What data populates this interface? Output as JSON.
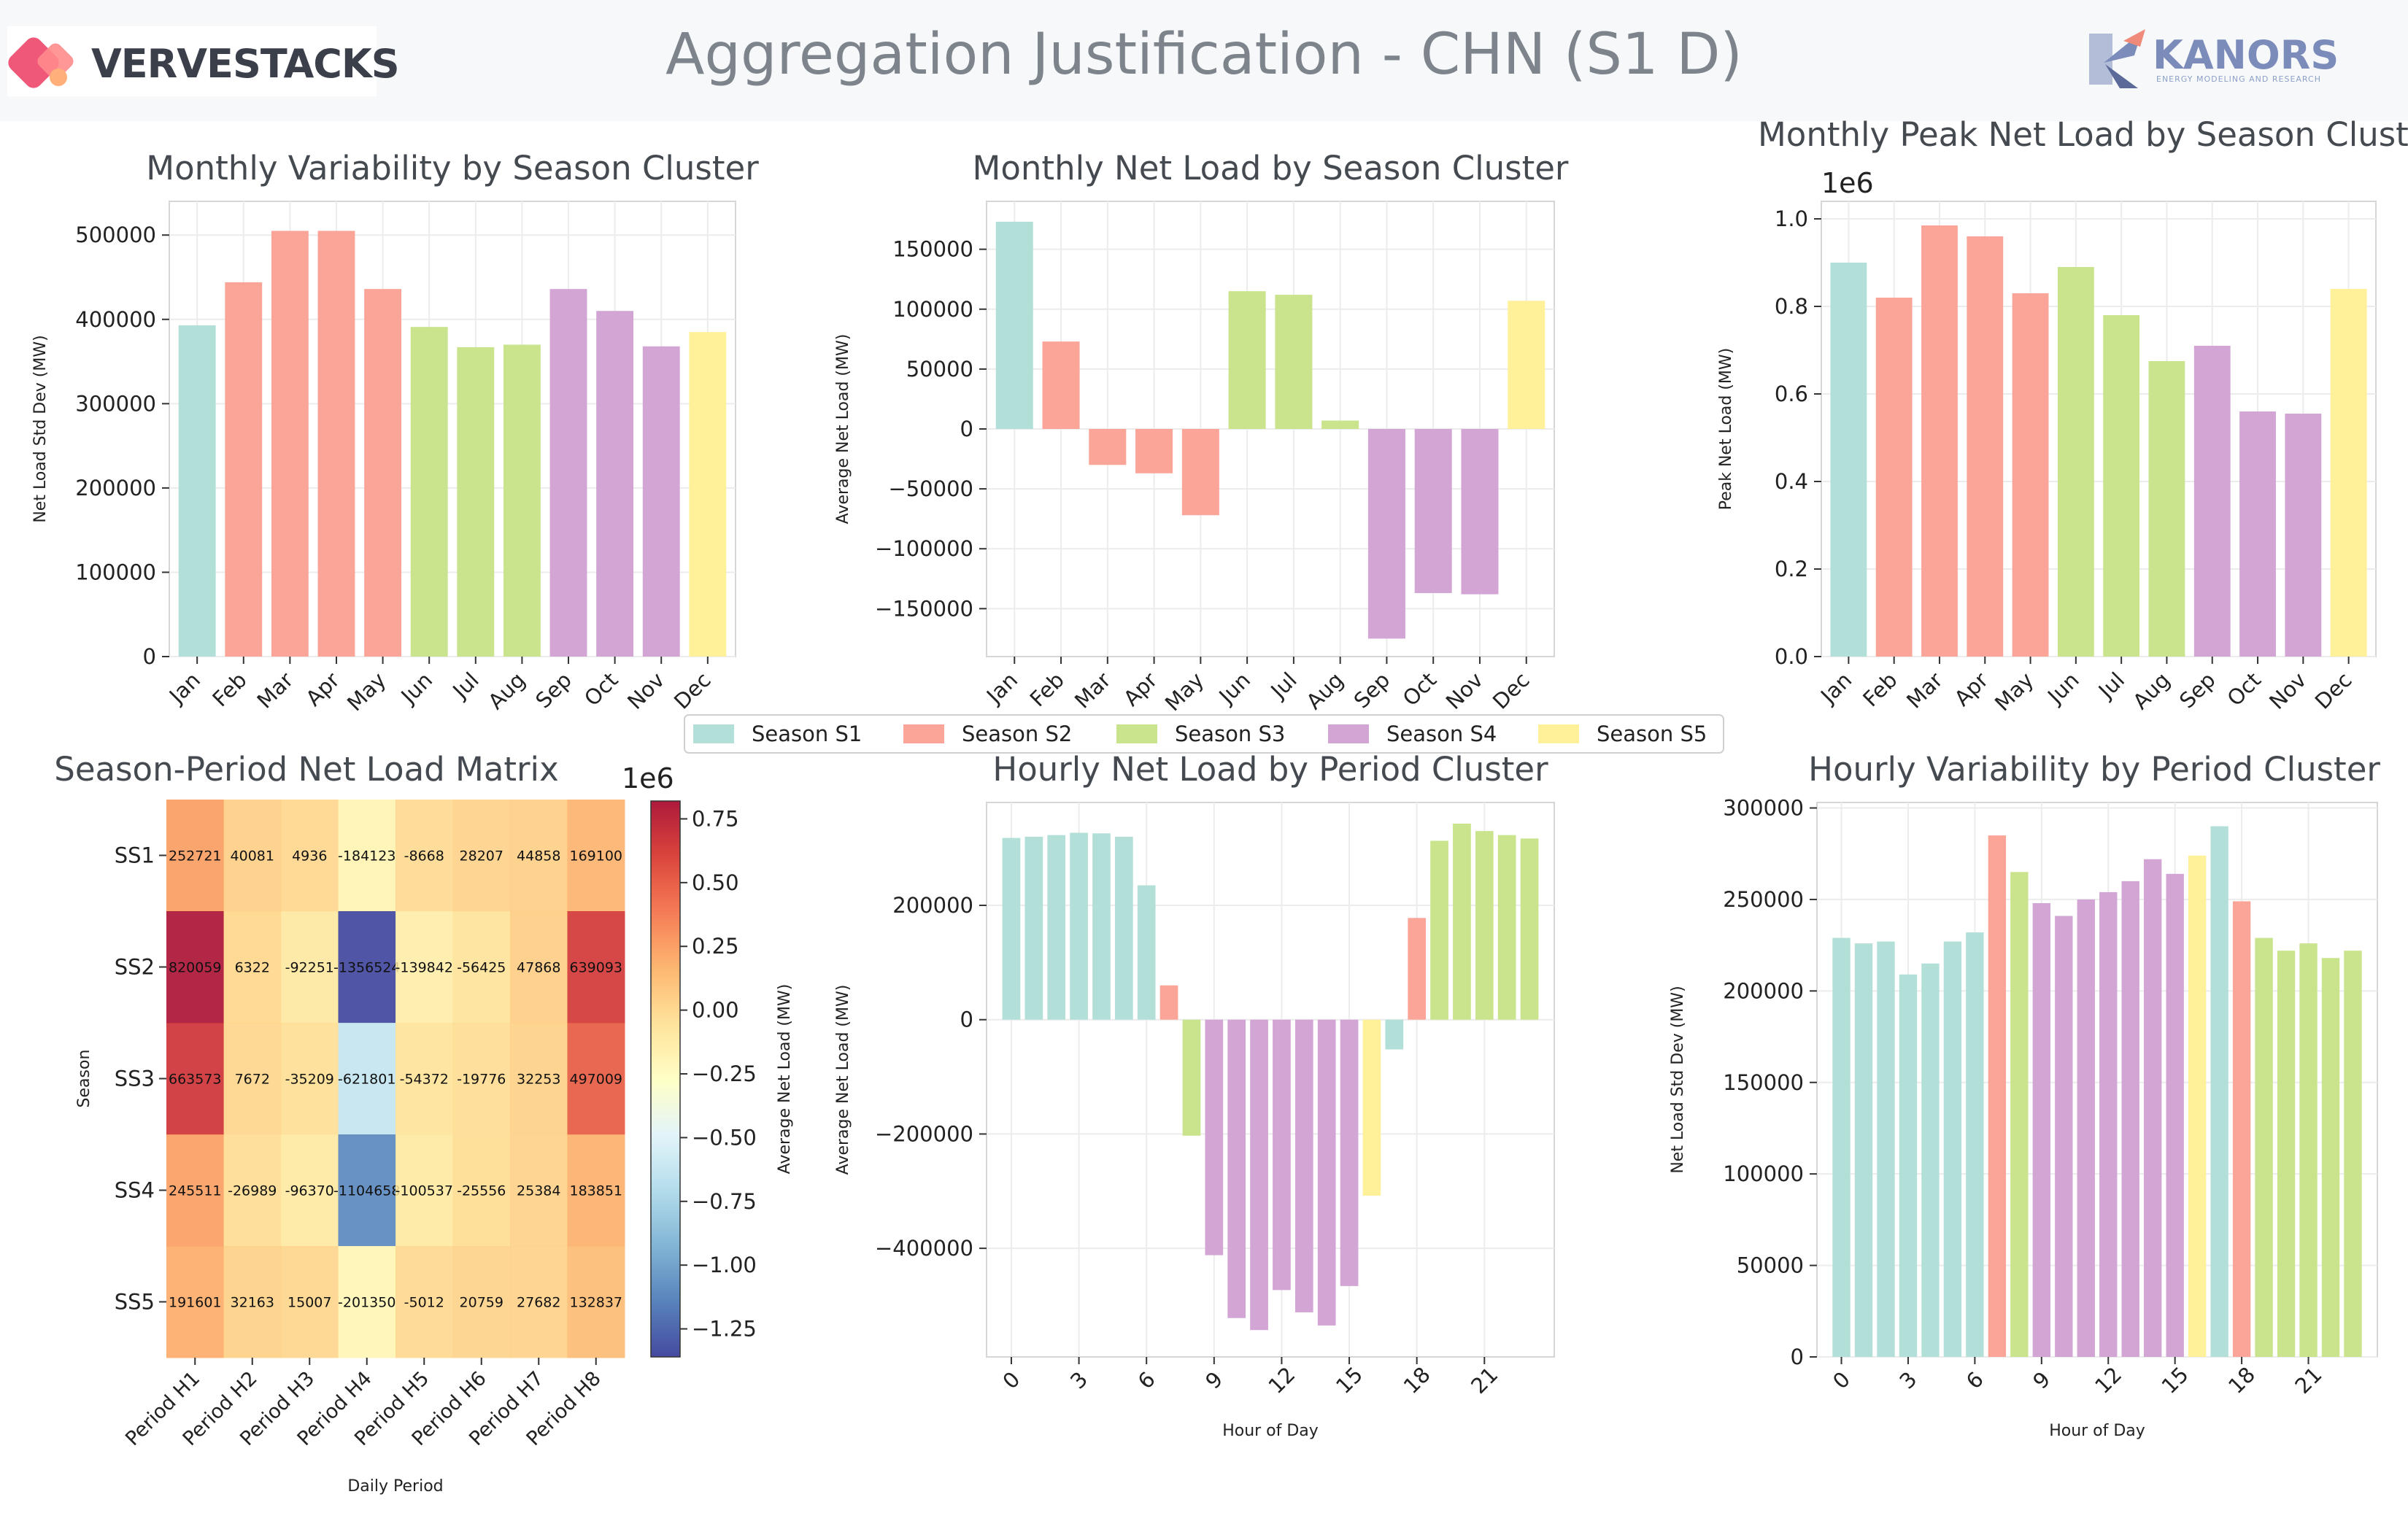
{
  "header": {
    "title": "Aggregation Justification - CHN (S1 D)",
    "left_logo": "VERVESTACKS",
    "right_logo": "KANORS",
    "right_logo_sub": "ENERGY MODELING AND RESEARCH"
  },
  "colors": {
    "S1": "#b2e0d8",
    "S2": "#fba598",
    "S3": "#c9e48c",
    "S4": "#d2a5d5",
    "S5": "#fff09a"
  },
  "legend": [
    {
      "label": "Season S1",
      "key": "S1"
    },
    {
      "label": "Season S2",
      "key": "S2"
    },
    {
      "label": "Season S3",
      "key": "S3"
    },
    {
      "label": "Season S4",
      "key": "S4"
    },
    {
      "label": "Season S5",
      "key": "S5"
    }
  ],
  "chart_data": [
    {
      "id": "monthly_variability",
      "type": "bar",
      "title": "Monthly Variability by Season Cluster",
      "ylabel": "Net Load Std Dev (MW)",
      "xlabel": "",
      "categories": [
        "Jan",
        "Feb",
        "Mar",
        "Apr",
        "May",
        "Jun",
        "Jul",
        "Aug",
        "Sep",
        "Oct",
        "Nov",
        "Dec"
      ],
      "values": [
        393000,
        444000,
        505000,
        505000,
        436000,
        391000,
        367000,
        370000,
        436000,
        410000,
        368000,
        385000
      ],
      "clusters": [
        "S1",
        "S2",
        "S2",
        "S2",
        "S2",
        "S3",
        "S3",
        "S3",
        "S4",
        "S4",
        "S4",
        "S5"
      ],
      "ylim": [
        0,
        540000
      ],
      "yticks": [
        0,
        100000,
        200000,
        300000,
        400000,
        500000
      ],
      "ytick_labels": [
        "0",
        "100000",
        "200000",
        "300000",
        "400000",
        "500000"
      ],
      "grid": true
    },
    {
      "id": "monthly_net_load",
      "type": "bar",
      "title": "Monthly Net Load by Season Cluster",
      "ylabel": "Average Net Load (MW)",
      "xlabel": "",
      "categories": [
        "Jan",
        "Feb",
        "Mar",
        "Apr",
        "May",
        "Jun",
        "Jul",
        "Aug",
        "Sep",
        "Oct",
        "Nov",
        "Dec"
      ],
      "values": [
        173000,
        73000,
        -30000,
        -37000,
        -72000,
        115000,
        112000,
        7000,
        -175000,
        -137000,
        -138000,
        107000
      ],
      "clusters": [
        "S1",
        "S2",
        "S2",
        "S2",
        "S2",
        "S3",
        "S3",
        "S3",
        "S4",
        "S4",
        "S4",
        "S5"
      ],
      "ylim": [
        -190000,
        190000
      ],
      "yticks": [
        -150000,
        -100000,
        -50000,
        0,
        50000,
        100000,
        150000
      ],
      "ytick_labels": [
        "−150000",
        "−100000",
        "−50000",
        "0",
        "50000",
        "100000",
        "150000"
      ],
      "grid": true
    },
    {
      "id": "monthly_peak",
      "type": "bar",
      "title": "Monthly Peak Net Load by Season Cluster",
      "ylabel": "Peak Net Load (MW)",
      "xlabel": "",
      "offset_label": "1e6",
      "categories": [
        "Jan",
        "Feb",
        "Mar",
        "Apr",
        "May",
        "Jun",
        "Jul",
        "Aug",
        "Sep",
        "Oct",
        "Nov",
        "Dec"
      ],
      "values": [
        0.9,
        0.82,
        0.985,
        0.96,
        0.83,
        0.89,
        0.78,
        0.675,
        0.71,
        0.56,
        0.555,
        0.84
      ],
      "clusters": [
        "S1",
        "S2",
        "S2",
        "S2",
        "S2",
        "S3",
        "S3",
        "S3",
        "S4",
        "S4",
        "S4",
        "S5"
      ],
      "ylim": [
        0,
        1.04
      ],
      "yticks": [
        0,
        0.2,
        0.4,
        0.6,
        0.8,
        1.0
      ],
      "ytick_labels": [
        "0.0",
        "0.2",
        "0.4",
        "0.6",
        "0.8",
        "1.0"
      ],
      "grid": true
    },
    {
      "id": "season_period_matrix",
      "type": "heatmap",
      "title": "Season-Period Net Load Matrix",
      "xlabel": "Daily Period",
      "ylabel": "Season",
      "rows": [
        "SS1",
        "SS2",
        "SS3",
        "SS4",
        "SS5"
      ],
      "cols": [
        "Period H1",
        "Period H2",
        "Period H3",
        "Period H4",
        "Period H5",
        "Period H6",
        "Period H7",
        "Period H8"
      ],
      "values": [
        [
          252721,
          40081,
          4936,
          -184123,
          -8668,
          28207,
          44858,
          169100
        ],
        [
          820059,
          6322,
          -92251,
          -1356524,
          -139842,
          -56425,
          47868,
          639093
        ],
        [
          663573,
          7672,
          -35209,
          -621801,
          -54372,
          -19776,
          32253,
          497009
        ],
        [
          245511,
          -26989,
          -96370,
          -1104658,
          -100537,
          -25556,
          25384,
          183851
        ],
        [
          191601,
          32163,
          15007,
          -201350,
          -5012,
          20759,
          27682,
          132837
        ]
      ],
      "labels": [
        [
          "252721",
          "40081",
          "4936",
          "-184123",
          "-8668",
          "28207",
          "44858",
          "169100"
        ],
        [
          "820059",
          "6322",
          "-92251",
          "-1356524",
          "-139842",
          "-56425",
          "47868",
          "639093"
        ],
        [
          "663573",
          "7672",
          "-35209",
          "-621801",
          "-54372",
          "-19776",
          "32253",
          "497009"
        ],
        [
          "245511",
          "-26989",
          "-96370",
          "-1104658",
          "-100537",
          "-25556",
          "25384",
          "183851"
        ],
        [
          "191601",
          "32163",
          "15007",
          "-201350",
          "-5012",
          "20759",
          "27682",
          "132837"
        ]
      ],
      "colorbar": {
        "label": "Average Net Load (MW)",
        "offset_label": "1e6",
        "vmin": -1.36,
        "vmax": 0.82,
        "ticks": [
          -1.25,
          -1.0,
          -0.75,
          -0.5,
          -0.25,
          0.0,
          0.25,
          0.5,
          0.75
        ],
        "tick_labels": [
          "−1.25",
          "−1.00",
          "−0.75",
          "−0.50",
          "−0.25",
          "0.00",
          "0.25",
          "0.50",
          "0.75"
        ]
      }
    },
    {
      "id": "hourly_net_load",
      "type": "bar",
      "title": "Hourly Net Load by Period Cluster",
      "ylabel": "Average Net Load (MW)",
      "xlabel": "Hour of Day",
      "x": [
        0,
        1,
        2,
        3,
        4,
        5,
        6,
        7,
        8,
        9,
        10,
        11,
        12,
        13,
        14,
        15,
        16,
        17,
        18,
        19,
        20,
        21,
        22,
        23
      ],
      "values": [
        318000,
        320000,
        323000,
        327000,
        326000,
        320000,
        235000,
        60000,
        -203000,
        -412000,
        -522000,
        -543000,
        -473000,
        -512000,
        -535000,
        -466000,
        -308000,
        -52000,
        178000,
        313000,
        343000,
        330000,
        323000,
        317000
      ],
      "clusters": [
        "S1",
        "S1",
        "S1",
        "S1",
        "S1",
        "S1",
        "S1",
        "S2",
        "S3",
        "S4",
        "S4",
        "S4",
        "S4",
        "S4",
        "S4",
        "S4",
        "S5",
        "S1",
        "S2",
        "S3",
        "S3",
        "S3",
        "S3",
        "S3"
      ],
      "ylim": [
        -590000,
        380000
      ],
      "yticks": [
        -400000,
        -200000,
        0,
        200000
      ],
      "ytick_labels": [
        "−400000",
        "−200000",
        "0",
        "200000"
      ],
      "xticks": [
        0,
        3,
        6,
        9,
        12,
        15,
        18,
        21
      ],
      "grid": true
    },
    {
      "id": "hourly_variability",
      "type": "bar",
      "title": "Hourly Variability by Period Cluster",
      "ylabel": "Net Load Std Dev (MW)",
      "xlabel": "Hour of Day",
      "x": [
        0,
        1,
        2,
        3,
        4,
        5,
        6,
        7,
        8,
        9,
        10,
        11,
        12,
        13,
        14,
        15,
        16,
        17,
        18,
        19,
        20,
        21,
        22,
        23
      ],
      "values": [
        229000,
        226000,
        227000,
        209000,
        215000,
        227000,
        232000,
        285000,
        265000,
        248000,
        241000,
        250000,
        254000,
        260000,
        272000,
        264000,
        274000,
        290000,
        249000,
        229000,
        222000,
        226000,
        218000,
        222000
      ],
      "clusters": [
        "S1",
        "S1",
        "S1",
        "S1",
        "S1",
        "S1",
        "S1",
        "S2",
        "S3",
        "S4",
        "S4",
        "S4",
        "S4",
        "S4",
        "S4",
        "S4",
        "S5",
        "S1",
        "S2",
        "S3",
        "S3",
        "S3",
        "S3",
        "S3"
      ],
      "ylim": [
        0,
        303000
      ],
      "yticks": [
        0,
        50000,
        100000,
        150000,
        200000,
        250000,
        300000
      ],
      "ytick_labels": [
        "0",
        "50000",
        "100000",
        "150000",
        "200000",
        "250000",
        "300000"
      ],
      "xticks": [
        0,
        3,
        6,
        9,
        12,
        15,
        18,
        21
      ],
      "grid": true
    }
  ]
}
